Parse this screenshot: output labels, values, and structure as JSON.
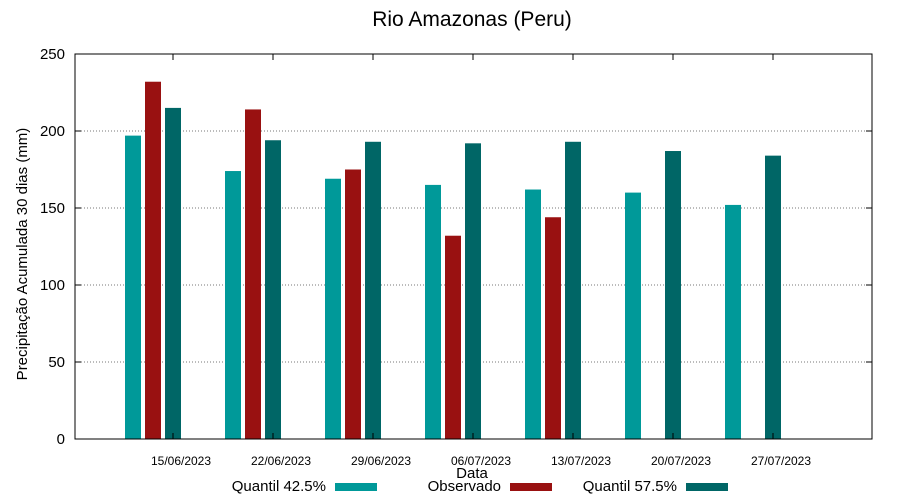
{
  "chart_data": {
    "type": "bar",
    "title": "Rio Amazonas (Peru)",
    "xlabel": "Data",
    "ylabel": "Precipitação Acumulada 30 dias (mm)",
    "ylim": [
      0,
      250
    ],
    "yticks": [
      0,
      50,
      100,
      150,
      200,
      250
    ],
    "grid": true,
    "legend_position": "bottom",
    "categories": [
      "15/06/2023",
      "22/06/2023",
      "29/06/2023",
      "06/07/2023",
      "13/07/2023",
      "20/07/2023",
      "27/07/2023"
    ],
    "series": [
      {
        "name": "Quantil 42.5%",
        "color": "#009999",
        "values": [
          197,
          174,
          169,
          165,
          162,
          160,
          152
        ]
      },
      {
        "name": "Observado",
        "color": "#991111",
        "values": [
          232,
          214,
          175,
          132,
          144,
          null,
          null
        ]
      },
      {
        "name": "Quantil 57.5%",
        "color": "#006666",
        "values": [
          215,
          194,
          193,
          192,
          193,
          187,
          184
        ]
      }
    ]
  }
}
